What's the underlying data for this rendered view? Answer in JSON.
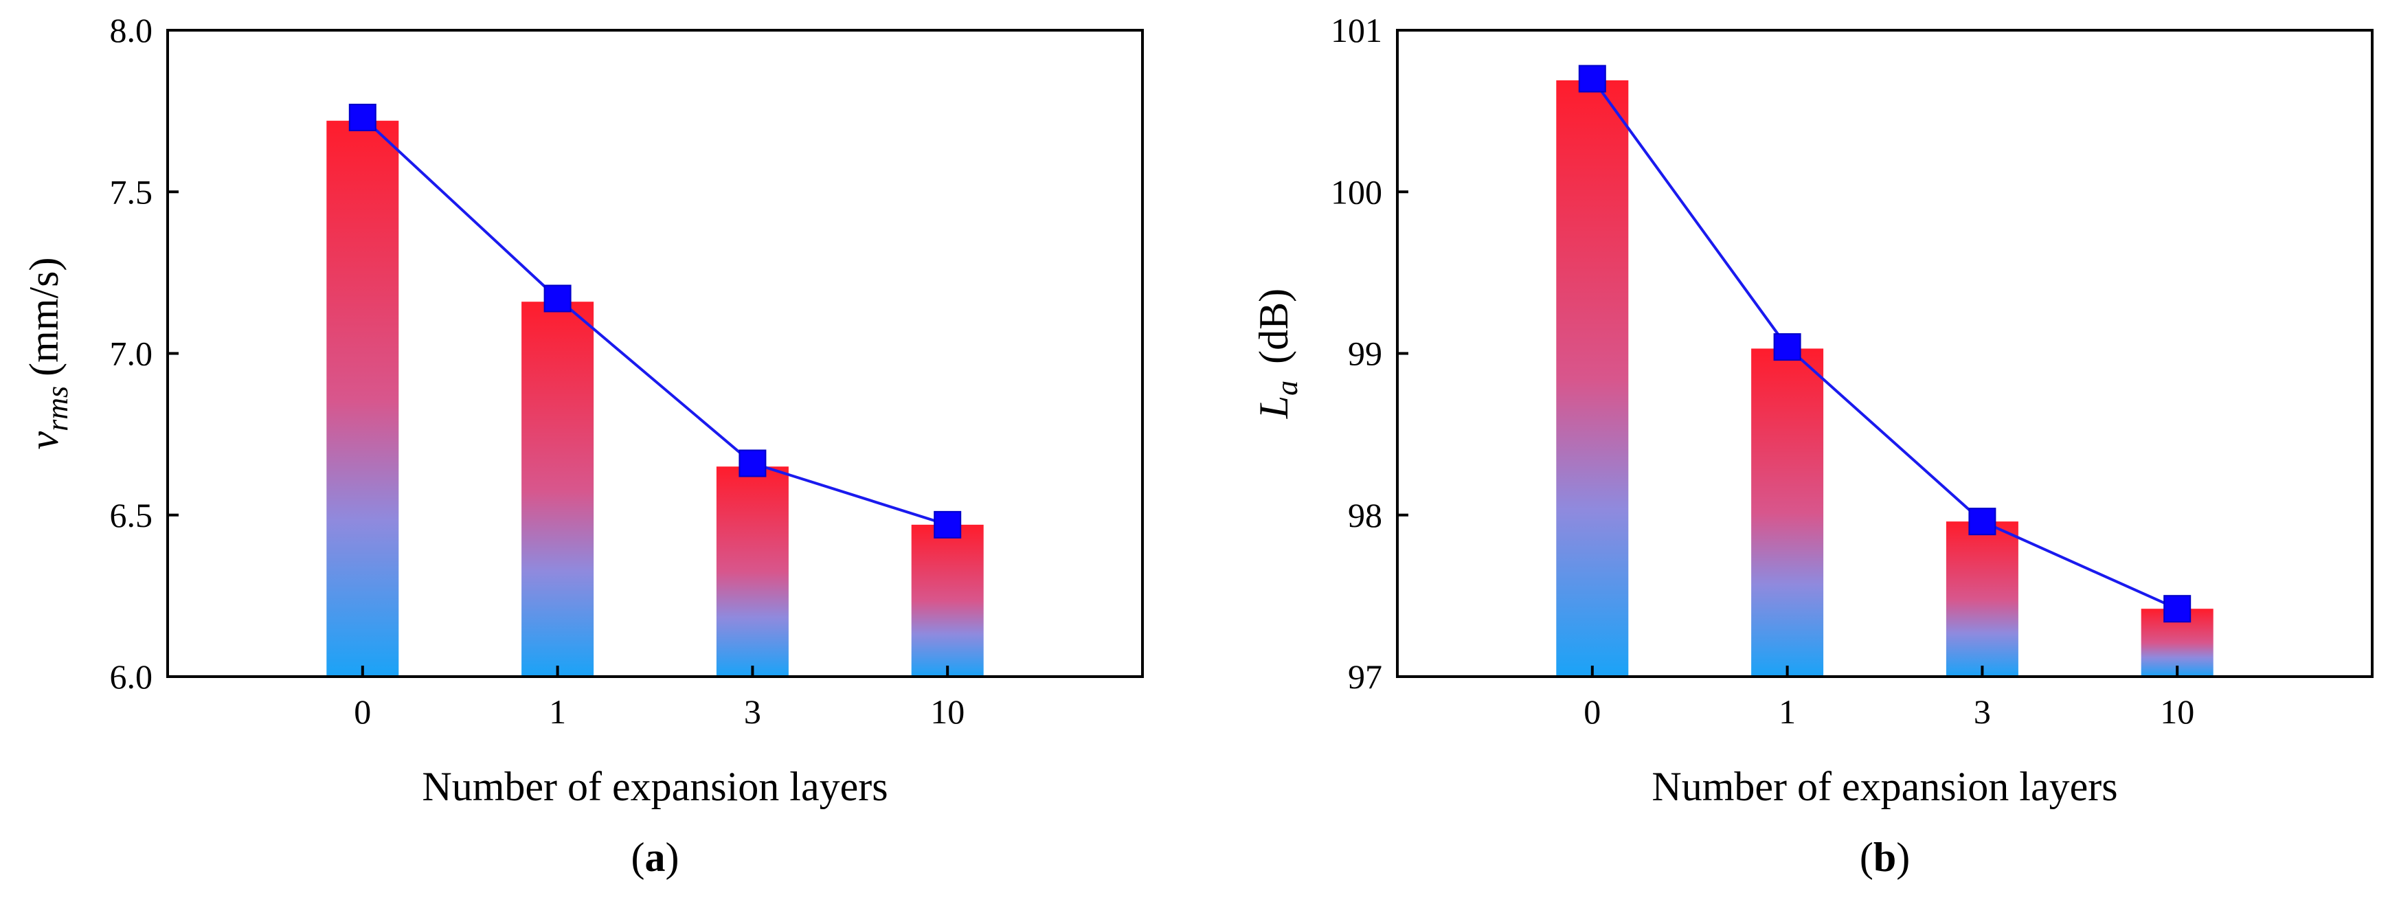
{
  "chart_data": [
    {
      "type": "bar",
      "panel_label": "a",
      "categories": [
        "0",
        "1",
        "3",
        "10"
      ],
      "series": [
        {
          "name": "bars",
          "values": [
            7.72,
            7.16,
            6.65,
            6.47
          ]
        },
        {
          "name": "line",
          "values": [
            7.73,
            7.17,
            6.66,
            6.47
          ]
        }
      ],
      "ylim": [
        6.0,
        8.0
      ],
      "yticks": [
        6.0,
        6.5,
        7.0,
        7.5,
        8.0
      ],
      "ytick_labels": [
        "6.0",
        "6.5",
        "7.0",
        "7.5",
        "8.0"
      ],
      "xlabel": "Number of expansion layers",
      "ylabel_symbol": "v",
      "ylabel_subscript": "rms",
      "ylabel_unit": "(mm/s)",
      "colors": {
        "bar_top": "#ff1c2c",
        "bar_mid": "#8f8ade",
        "bar_bottom": "#1aa3f7",
        "line": "#1a1aee",
        "marker": "#0a00ff"
      }
    },
    {
      "type": "bar",
      "panel_label": "b",
      "categories": [
        "0",
        "1",
        "3",
        "10"
      ],
      "series": [
        {
          "name": "bars",
          "values": [
            100.69,
            99.03,
            97.96,
            97.42
          ]
        },
        {
          "name": "line",
          "values": [
            100.7,
            99.04,
            97.96,
            97.42
          ]
        }
      ],
      "ylim": [
        97,
        101
      ],
      "yticks": [
        97,
        98,
        99,
        100,
        101
      ],
      "ytick_labels": [
        "97",
        "98",
        "99",
        "100",
        "101"
      ],
      "xlabel": "Number of expansion layers",
      "ylabel_symbol": "L",
      "ylabel_subscript": "a",
      "ylabel_unit": "(dB)",
      "colors": {
        "bar_top": "#ff1c2c",
        "bar_mid": "#8f8ade",
        "bar_bottom": "#1aa3f7",
        "line": "#1a1aee",
        "marker": "#0a00ff"
      }
    }
  ]
}
